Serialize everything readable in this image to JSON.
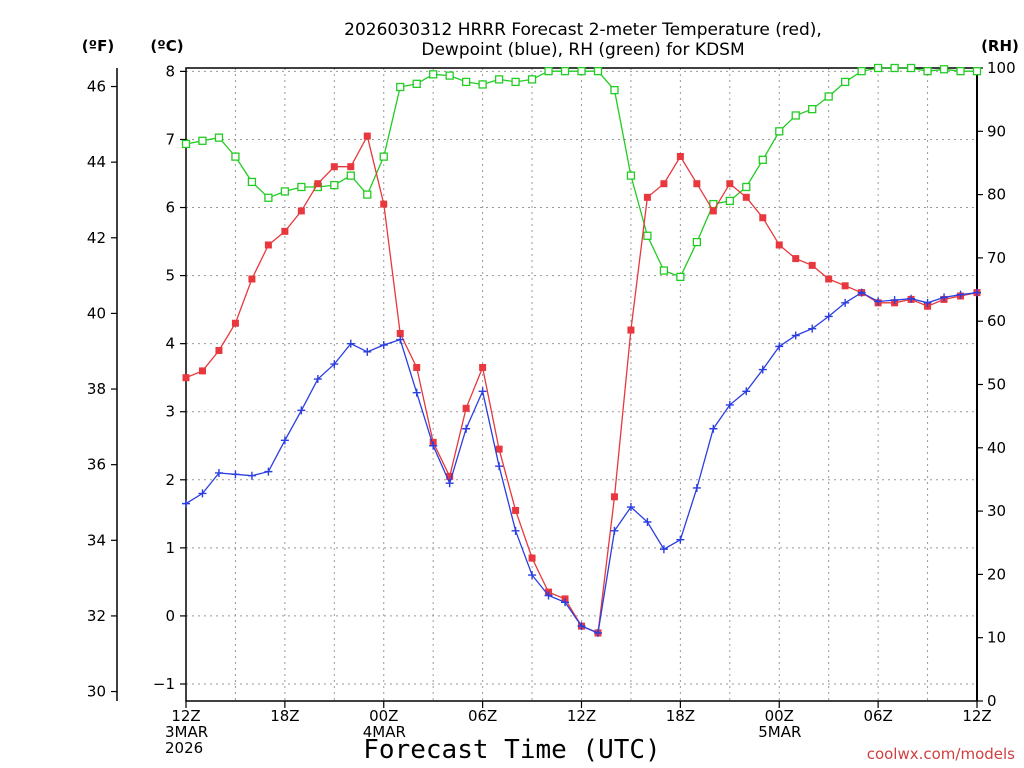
{
  "chart_data": {
    "type": "line",
    "title_line1": "2026030312 HRRR Forecast 2-meter Temperature (red),",
    "title_line2": "Dewpoint (blue), RH (green) for KDSM",
    "xlabel": "Forecast Time (UTC)",
    "credit": "coolwx.com/models",
    "units": {
      "f": "(ºF)",
      "c": "(ºC)",
      "rh": "(RH)"
    },
    "x_ticks": [
      {
        "hour": 0,
        "lines": [
          "12Z",
          "3MAR",
          "2026"
        ]
      },
      {
        "hour": 6,
        "lines": [
          "18Z"
        ]
      },
      {
        "hour": 12,
        "lines": [
          "00Z",
          "4MAR"
        ]
      },
      {
        "hour": 18,
        "lines": [
          "06Z"
        ]
      },
      {
        "hour": 24,
        "lines": [
          "12Z"
        ]
      },
      {
        "hour": 30,
        "lines": [
          "18Z"
        ]
      },
      {
        "hour": 36,
        "lines": [
          "00Z",
          "5MAR"
        ]
      },
      {
        "hour": 42,
        "lines": [
          "06Z"
        ]
      },
      {
        "hour": 48,
        "lines": [
          "12Z"
        ]
      }
    ],
    "xlim": [
      0,
      48
    ],
    "ylim_c": [
      -1.25,
      8.05
    ],
    "ylim_f": [
      29.75,
      46.49
    ],
    "ylim_rh": [
      0,
      100
    ],
    "yticks_c": [
      "-1",
      "0",
      "1",
      "2",
      "3",
      "4",
      "5",
      "6",
      "7",
      "8"
    ],
    "yticks_f": [
      "30",
      "32",
      "34",
      "36",
      "38",
      "40",
      "42",
      "44",
      "46"
    ],
    "yticks_rh": [
      "0",
      "10",
      "20",
      "30",
      "40",
      "50",
      "60",
      "70",
      "80",
      "90",
      "100"
    ],
    "grid": true,
    "colors": {
      "temperature": "#e8383d",
      "dewpoint": "#2b3ee0",
      "rh": "#22cc22",
      "grid": "#999999"
    },
    "series": [
      {
        "name": "Temperature",
        "unit": "C",
        "values": [
          3.5,
          3.6,
          3.9,
          4.3,
          4.95,
          5.45,
          5.65,
          5.95,
          6.35,
          6.6,
          6.6,
          7.05,
          6.05,
          4.15,
          3.65,
          2.55,
          2.05,
          3.05,
          3.65,
          2.45,
          1.55,
          0.85,
          0.35,
          0.25,
          -0.15,
          -0.25,
          1.75,
          4.2,
          6.15,
          6.35,
          6.75,
          6.35,
          5.95,
          6.35,
          6.15,
          5.85,
          5.45,
          5.25,
          5.15,
          4.95,
          4.85,
          4.75,
          4.6,
          4.6,
          4.65,
          4.55,
          4.65,
          4.7,
          4.75
        ]
      },
      {
        "name": "Dewpoint",
        "unit": "C",
        "values": [
          1.65,
          1.8,
          2.1,
          2.08,
          2.06,
          2.12,
          2.58,
          3.02,
          3.48,
          3.7,
          4.0,
          3.88,
          3.98,
          4.06,
          3.28,
          2.5,
          1.95,
          2.75,
          3.3,
          2.2,
          1.25,
          0.6,
          0.3,
          0.2,
          -0.15,
          -0.25,
          1.25,
          1.6,
          1.38,
          0.98,
          1.12,
          1.88,
          2.75,
          3.1,
          3.3,
          3.62,
          3.96,
          4.12,
          4.22,
          4.4,
          4.6,
          4.75,
          4.62,
          4.64,
          4.66,
          4.6,
          4.68,
          4.72,
          4.75
        ]
      },
      {
        "name": "RH",
        "unit": "%",
        "values": [
          88,
          88.5,
          89,
          86,
          82,
          79.5,
          80.5,
          81.2,
          81.2,
          81.5,
          83,
          80,
          86,
          97,
          97.5,
          99,
          98.8,
          97.8,
          97.4,
          98.2,
          97.8,
          98.2,
          99.5,
          99.5,
          99.5,
          99.5,
          96.5,
          83,
          73.5,
          68,
          67,
          72.5,
          78.5,
          79,
          81.2,
          85.5,
          90,
          92.5,
          93.5,
          95.5,
          97.8,
          99.5,
          100,
          100,
          100,
          99.5,
          99.8,
          99.5,
          99.5
        ]
      }
    ]
  }
}
